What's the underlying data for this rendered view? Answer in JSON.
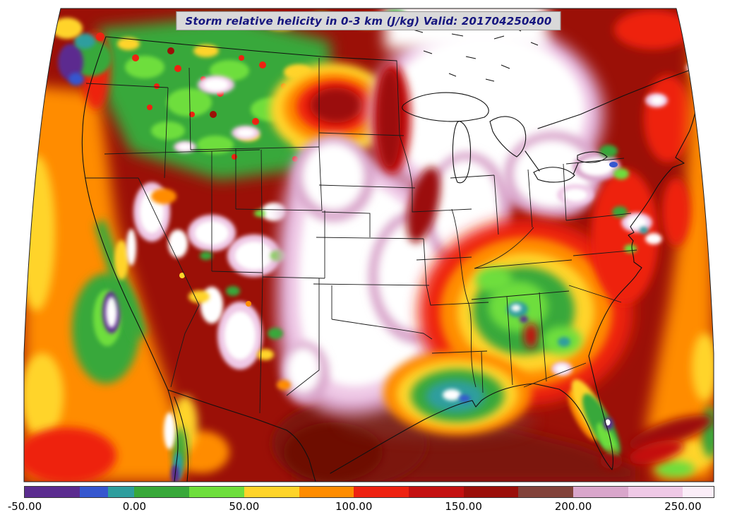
{
  "title": {
    "text": "Storm relative helicity in 0-3 km (J/kg) Valid: 201704250400"
  },
  "colorbar": {
    "min": -50,
    "max": 264,
    "ticks": [
      {
        "value": -50,
        "label": "-50.00"
      },
      {
        "value": 0,
        "label": "0.00"
      },
      {
        "value": 50,
        "label": "50.00"
      },
      {
        "value": 100,
        "label": "100.00"
      },
      {
        "value": 150,
        "label": "150.00"
      },
      {
        "value": 200,
        "label": "200.00"
      },
      {
        "value": 250,
        "label": "250.00"
      }
    ],
    "segments": [
      {
        "from": -50,
        "to": -25,
        "color": "#5b2c8f"
      },
      {
        "from": -25,
        "to": -12,
        "color": "#3657cf"
      },
      {
        "from": -12,
        "to": 0,
        "color": "#2f9e9e"
      },
      {
        "from": 0,
        "to": 25,
        "color": "#39a83a"
      },
      {
        "from": 25,
        "to": 50,
        "color": "#6ede3c"
      },
      {
        "from": 50,
        "to": 75,
        "color": "#ffd42a"
      },
      {
        "from": 75,
        "to": 100,
        "color": "#ff8c00"
      },
      {
        "from": 100,
        "to": 125,
        "color": "#ee2211"
      },
      {
        "from": 125,
        "to": 150,
        "color": "#c41111"
      },
      {
        "from": 150,
        "to": 175,
        "color": "#9b0f0a"
      },
      {
        "from": 175,
        "to": 200,
        "color": "#82423a"
      },
      {
        "from": 200,
        "to": 225,
        "color": "#d9a6cb"
      },
      {
        "from": 225,
        "to": 250,
        "color": "#efc9e6"
      },
      {
        "from": 250,
        "to": 264,
        "color": "#fbeef8"
      }
    ]
  },
  "chart_data": {
    "type": "heatmap",
    "title": "Storm relative helicity in 0-3 km (J/kg) Valid: 201704250400",
    "variable": "Storm relative helicity in 0-3 km",
    "units": "J/kg",
    "valid_time": "201704250400",
    "region": "Contiguous United States",
    "colorbar_ticks": [
      -50,
      0,
      50,
      100,
      150,
      200,
      250
    ],
    "color_levels": [
      -50,
      -25,
      -12,
      0,
      25,
      50,
      75,
      100,
      125,
      150,
      175,
      200,
      225,
      250,
      264
    ],
    "colors": [
      "#5b2c8f",
      "#3657cf",
      "#2f9e9e",
      "#39a83a",
      "#6ede3c",
      "#ffd42a",
      "#ff8c00",
      "#ee2211",
      "#c41111",
      "#9b0f0a",
      "#82423a",
      "#d9a6cb",
      "#efc9e6",
      "#fbeef8"
    ],
    "legend_position": "bottom"
  }
}
